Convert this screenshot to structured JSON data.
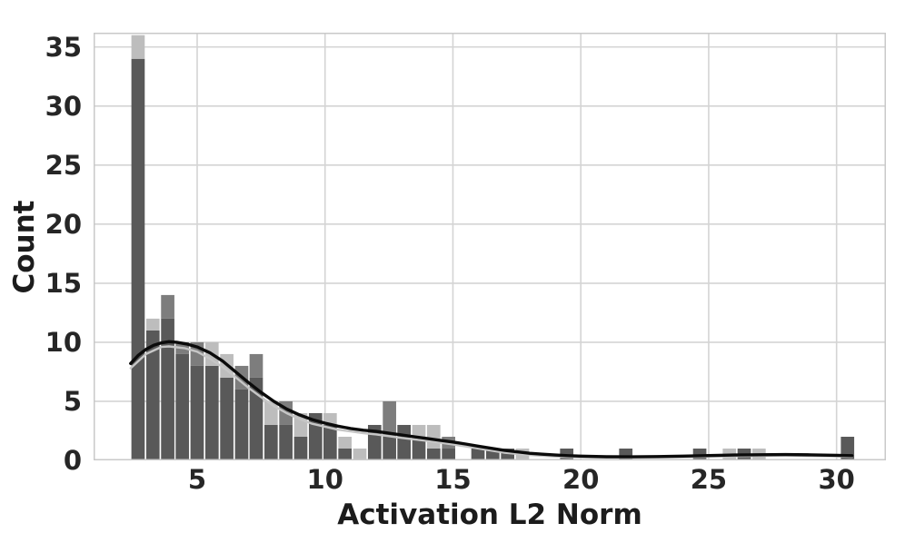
{
  "figure": {
    "background": "#ffffff",
    "xlabel": "Activation L2 Norm",
    "ylabel": "Count"
  },
  "chart_data": {
    "type": "histogram+kde",
    "xlabel": "Activation L2 Norm",
    "ylabel": "Count",
    "xlim": [
      0.95,
      31.93
    ],
    "ylim": [
      0,
      36.21
    ],
    "xticks": [
      5,
      10,
      15,
      20,
      25,
      30
    ],
    "yticks": [
      0,
      5,
      10,
      15,
      20,
      25,
      30,
      35
    ],
    "grid": true,
    "bin_width": 0.578,
    "colors": {
      "dark": "#595959",
      "medium": "#7d7d7d",
      "light": "#bdbdbd",
      "kde": "#0b0b0b",
      "kde_light": "#c6c6c6",
      "gridline": "#d4d4d4",
      "spine": "#c9c9c9",
      "tick_text": "#262626"
    },
    "bars": [
      {
        "x": 2.4,
        "segments": [
          {
            "series": "dark",
            "count": 34
          },
          {
            "series": "light",
            "count": 2
          }
        ]
      },
      {
        "x": 2.98,
        "segments": [
          {
            "series": "dark",
            "count": 11
          },
          {
            "series": "light",
            "count": 1
          }
        ]
      },
      {
        "x": 3.56,
        "segments": [
          {
            "series": "dark",
            "count": 12
          },
          {
            "series": "medium",
            "count": 2
          }
        ]
      },
      {
        "x": 4.13,
        "segments": [
          {
            "series": "dark",
            "count": 9
          },
          {
            "series": "medium",
            "count": 1
          }
        ]
      },
      {
        "x": 4.71,
        "segments": [
          {
            "series": "dark",
            "count": 8
          },
          {
            "series": "medium",
            "count": 2
          }
        ]
      },
      {
        "x": 5.29,
        "segments": [
          {
            "series": "dark",
            "count": 8
          },
          {
            "series": "light",
            "count": 2
          }
        ]
      },
      {
        "x": 5.87,
        "segments": [
          {
            "series": "dark",
            "count": 7
          },
          {
            "series": "light",
            "count": 2
          }
        ]
      },
      {
        "x": 6.45,
        "segments": [
          {
            "series": "dark",
            "count": 6
          },
          {
            "series": "medium",
            "count": 2
          }
        ]
      },
      {
        "x": 7.02,
        "segments": [
          {
            "series": "dark",
            "count": 7
          },
          {
            "series": "medium",
            "count": 2
          }
        ]
      },
      {
        "x": 7.6,
        "segments": [
          {
            "series": "dark",
            "count": 3
          },
          {
            "series": "light",
            "count": 2
          }
        ]
      },
      {
        "x": 8.18,
        "segments": [
          {
            "series": "dark",
            "count": 3
          },
          {
            "series": "medium",
            "count": 2
          }
        ]
      },
      {
        "x": 8.76,
        "segments": [
          {
            "series": "dark",
            "count": 2
          },
          {
            "series": "light",
            "count": 2
          }
        ]
      },
      {
        "x": 9.34,
        "segments": [
          {
            "series": "dark",
            "count": 4
          }
        ]
      },
      {
        "x": 9.91,
        "segments": [
          {
            "series": "dark",
            "count": 3
          },
          {
            "series": "light",
            "count": 1
          }
        ]
      },
      {
        "x": 10.49,
        "segments": [
          {
            "series": "dark",
            "count": 1
          },
          {
            "series": "light",
            "count": 1
          }
        ]
      },
      {
        "x": 11.07,
        "segments": [
          {
            "series": "light",
            "count": 1
          }
        ]
      },
      {
        "x": 11.65,
        "segments": [
          {
            "series": "dark",
            "count": 3
          }
        ]
      },
      {
        "x": 12.23,
        "segments": [
          {
            "series": "dark",
            "count": 2
          },
          {
            "series": "medium",
            "count": 3
          }
        ]
      },
      {
        "x": 12.8,
        "segments": [
          {
            "series": "dark",
            "count": 3
          }
        ]
      },
      {
        "x": 13.38,
        "segments": [
          {
            "series": "dark",
            "count": 2
          },
          {
            "series": "light",
            "count": 1
          }
        ]
      },
      {
        "x": 13.96,
        "segments": [
          {
            "series": "dark",
            "count": 1
          },
          {
            "series": "light",
            "count": 2
          }
        ]
      },
      {
        "x": 14.54,
        "segments": [
          {
            "series": "dark",
            "count": 1
          },
          {
            "series": "medium",
            "count": 1
          }
        ]
      },
      {
        "x": 15.69,
        "segments": [
          {
            "series": "dark",
            "count": 1
          }
        ]
      },
      {
        "x": 16.27,
        "segments": [
          {
            "series": "dark",
            "count": 1
          }
        ]
      },
      {
        "x": 16.85,
        "segments": [
          {
            "series": "dark",
            "count": 1
          }
        ]
      },
      {
        "x": 17.43,
        "segments": [
          {
            "series": "light",
            "count": 1
          }
        ]
      },
      {
        "x": 19.16,
        "segments": [
          {
            "series": "dark",
            "count": 1
          }
        ]
      },
      {
        "x": 21.47,
        "segments": [
          {
            "series": "dark",
            "count": 1
          }
        ]
      },
      {
        "x": 24.36,
        "segments": [
          {
            "series": "dark",
            "count": 1
          }
        ]
      },
      {
        "x": 25.52,
        "segments": [
          {
            "series": "light",
            "count": 1
          }
        ]
      },
      {
        "x": 26.1,
        "segments": [
          {
            "series": "dark",
            "count": 1
          }
        ]
      },
      {
        "x": 26.68,
        "segments": [
          {
            "series": "light",
            "count": 1
          }
        ]
      },
      {
        "x": 30.14,
        "segments": [
          {
            "series": "dark",
            "count": 2
          }
        ]
      }
    ],
    "kde": [
      [
        2.4,
        8.2
      ],
      [
        2.7,
        8.9
      ],
      [
        3.0,
        9.4
      ],
      [
        3.3,
        9.75
      ],
      [
        3.6,
        9.95
      ],
      [
        3.9,
        10.05
      ],
      [
        4.2,
        10.0
      ],
      [
        4.6,
        9.85
      ],
      [
        5.0,
        9.6
      ],
      [
        5.5,
        9.1
      ],
      [
        6.0,
        8.4
      ],
      [
        6.5,
        7.5
      ],
      [
        7.0,
        6.6
      ],
      [
        7.5,
        5.75
      ],
      [
        8.0,
        5.0
      ],
      [
        8.5,
        4.35
      ],
      [
        9.0,
        3.85
      ],
      [
        9.5,
        3.45
      ],
      [
        10.0,
        3.15
      ],
      [
        10.5,
        2.9
      ],
      [
        11.0,
        2.7
      ],
      [
        11.5,
        2.55
      ],
      [
        12.0,
        2.45
      ],
      [
        12.5,
        2.3
      ],
      [
        13.0,
        2.15
      ],
      [
        13.5,
        2.0
      ],
      [
        14.0,
        1.85
      ],
      [
        14.5,
        1.7
      ],
      [
        15.0,
        1.55
      ],
      [
        15.5,
        1.38
      ],
      [
        16.0,
        1.2
      ],
      [
        16.5,
        1.02
      ],
      [
        17.0,
        0.85
      ],
      [
        17.5,
        0.72
      ],
      [
        18.0,
        0.6
      ],
      [
        18.5,
        0.52
      ],
      [
        19.0,
        0.45
      ],
      [
        19.5,
        0.4
      ],
      [
        20.0,
        0.36
      ],
      [
        21.0,
        0.31
      ],
      [
        22.0,
        0.3
      ],
      [
        23.0,
        0.32
      ],
      [
        24.0,
        0.36
      ],
      [
        25.0,
        0.41
      ],
      [
        26.0,
        0.45
      ],
      [
        27.0,
        0.48
      ],
      [
        28.0,
        0.49
      ],
      [
        29.0,
        0.47
      ],
      [
        30.0,
        0.43
      ],
      [
        30.6,
        0.4
      ]
    ],
    "kde_light": [
      [
        2.4,
        7.8
      ],
      [
        3.0,
        9.0
      ],
      [
        3.6,
        9.6
      ],
      [
        3.9,
        9.65
      ],
      [
        4.5,
        9.5
      ],
      [
        5.0,
        9.2
      ],
      [
        5.5,
        8.6
      ],
      [
        6.0,
        7.9
      ],
      [
        6.5,
        7.05
      ],
      [
        7.0,
        6.15
      ],
      [
        7.5,
        5.35
      ],
      [
        8.0,
        4.6
      ],
      [
        8.5,
        4.0
      ],
      [
        9.0,
        3.5
      ],
      [
        9.5,
        3.1
      ],
      [
        10.0,
        2.85
      ],
      [
        10.5,
        2.6
      ],
      [
        11.0,
        2.45
      ],
      [
        11.5,
        2.3
      ],
      [
        12.0,
        2.2
      ],
      [
        13.0,
        1.9
      ],
      [
        14.0,
        1.65
      ],
      [
        15.0,
        1.35
      ],
      [
        16.0,
        1.0
      ],
      [
        17.0,
        0.65
      ],
      [
        18.0,
        0.45
      ],
      [
        19.0,
        0.32
      ],
      [
        20.0,
        0.25
      ],
      [
        22.0,
        0.22
      ],
      [
        24.0,
        0.28
      ],
      [
        26.0,
        0.35
      ],
      [
        28.0,
        0.4
      ],
      [
        30.0,
        0.34
      ],
      [
        30.6,
        0.3
      ]
    ]
  }
}
